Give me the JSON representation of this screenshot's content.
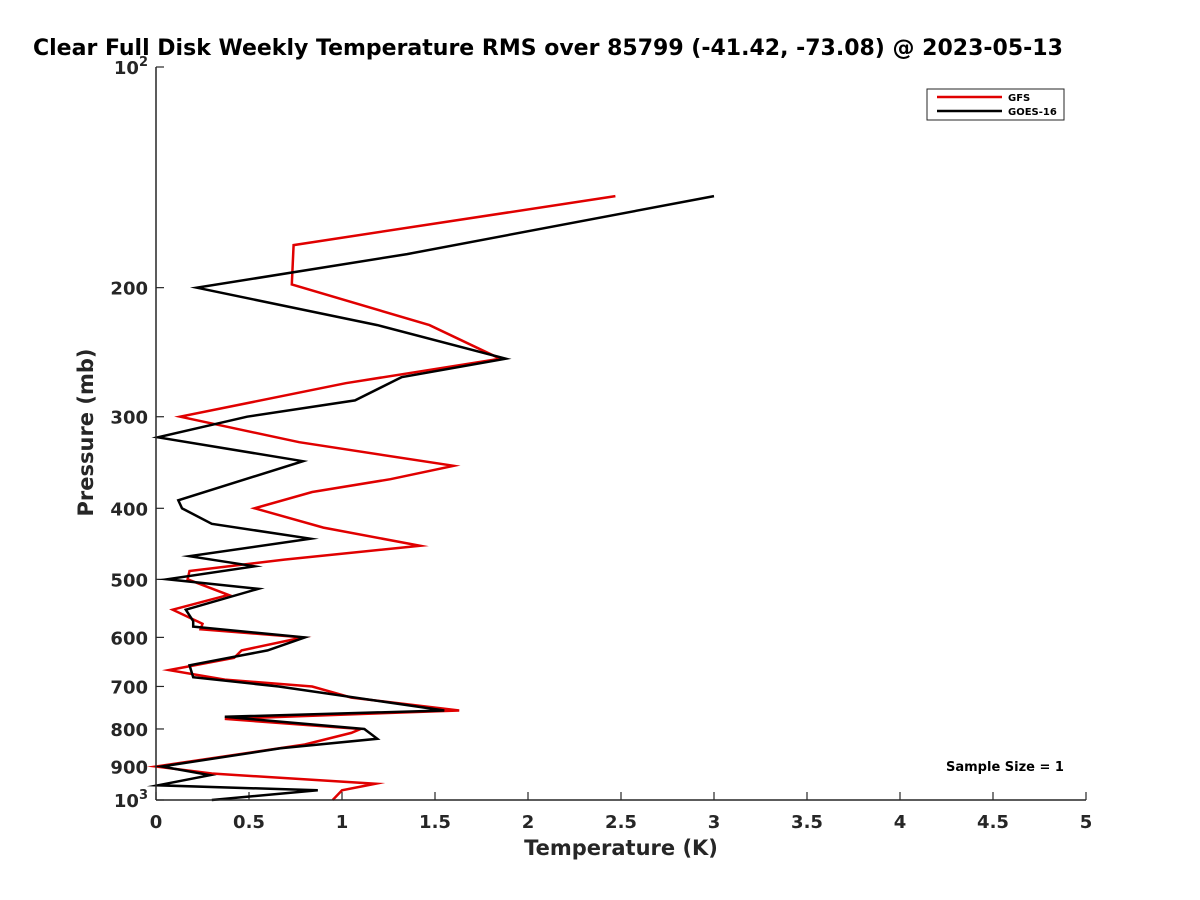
{
  "chart_data": {
    "type": "line",
    "title": "Clear Full Disk Weekly Temperature RMS over 85799 (-41.42, -73.08) @ 2023-05-13",
    "xlabel": "Temperature (K)",
    "ylabel": "Pressure (mb)",
    "xlim": [
      0,
      5
    ],
    "ylim": [
      100,
      1000
    ],
    "yscale": "log",
    "y_reversed": true,
    "grid": false,
    "legend_position": "top-right",
    "x_ticks": [
      0,
      0.5,
      1,
      1.5,
      2,
      2.5,
      3,
      3.5,
      4,
      4.5,
      5
    ],
    "x_tick_labels": [
      "0",
      "0.5",
      "1",
      "1.5",
      "2",
      "2.5",
      "3",
      "3.5",
      "4",
      "4.5",
      "5"
    ],
    "y_ticks": [
      100,
      200,
      300,
      400,
      500,
      600,
      700,
      800,
      900,
      1000
    ],
    "y_tick_labels": [
      {
        "text": "10",
        "sup": "2"
      },
      {
        "text": "200",
        "sup": ""
      },
      {
        "text": "300",
        "sup": ""
      },
      {
        "text": "400",
        "sup": ""
      },
      {
        "text": "500",
        "sup": ""
      },
      {
        "text": "600",
        "sup": ""
      },
      {
        "text": "700",
        "sup": ""
      },
      {
        "text": "800",
        "sup": ""
      },
      {
        "text": "900",
        "sup": ""
      },
      {
        "text": "10",
        "sup": "3"
      }
    ],
    "series": [
      {
        "name": "GFS",
        "color": "#e00000",
        "points": [
          [
            2.47,
            150
          ],
          [
            0.74,
            175
          ],
          [
            0.73,
            198
          ],
          [
            1.47,
            225
          ],
          [
            1.85,
            250
          ],
          [
            1.02,
            270
          ],
          [
            0.13,
            300
          ],
          [
            0.77,
            325
          ],
          [
            1.6,
            350
          ],
          [
            1.26,
            365
          ],
          [
            0.84,
            380
          ],
          [
            0.53,
            400
          ],
          [
            0.9,
            425
          ],
          [
            1.42,
            450
          ],
          [
            0.69,
            470
          ],
          [
            0.18,
            487
          ],
          [
            0.17,
            500
          ],
          [
            0.39,
            525
          ],
          [
            0.09,
            550
          ],
          [
            0.25,
            575
          ],
          [
            0.24,
            585
          ],
          [
            0.79,
            600
          ],
          [
            0.46,
            625
          ],
          [
            0.42,
            640
          ],
          [
            0.07,
            665
          ],
          [
            0.37,
            685
          ],
          [
            0.84,
            700
          ],
          [
            1.05,
            725
          ],
          [
            1.63,
            755
          ],
          [
            0.37,
            775
          ],
          [
            1.1,
            800
          ],
          [
            1.05,
            810
          ],
          [
            0.8,
            840
          ],
          [
            0.0,
            900
          ],
          [
            0.3,
            920
          ],
          [
            1.18,
            950
          ],
          [
            1.0,
            970
          ],
          [
            0.95,
            1000
          ]
        ]
      },
      {
        "name": "GOES-16",
        "color": "#000000",
        "points": [
          [
            3.0,
            150
          ],
          [
            1.35,
            180
          ],
          [
            0.22,
            200
          ],
          [
            1.19,
            225
          ],
          [
            1.88,
            250
          ],
          [
            1.32,
            265
          ],
          [
            1.07,
            285
          ],
          [
            0.49,
            300
          ],
          [
            0.01,
            320
          ],
          [
            0.79,
            345
          ],
          [
            0.12,
            390
          ],
          [
            0.14,
            400
          ],
          [
            0.3,
            420
          ],
          [
            0.83,
            440
          ],
          [
            0.18,
            465
          ],
          [
            0.53,
            480
          ],
          [
            0.06,
            500
          ],
          [
            0.55,
            515
          ],
          [
            0.16,
            550
          ],
          [
            0.2,
            570
          ],
          [
            0.2,
            580
          ],
          [
            0.8,
            600
          ],
          [
            0.6,
            625
          ],
          [
            0.18,
            655
          ],
          [
            0.2,
            680
          ],
          [
            0.66,
            700
          ],
          [
            1.55,
            755
          ],
          [
            0.37,
            770
          ],
          [
            1.12,
            800
          ],
          [
            1.19,
            825
          ],
          [
            0.67,
            850
          ],
          [
            0.03,
            900
          ],
          [
            0.29,
            925
          ],
          [
            0.01,
            955
          ],
          [
            0.87,
            970
          ],
          [
            0.3,
            1000
          ]
        ]
      }
    ],
    "annotation": "Sample Size = 1"
  }
}
